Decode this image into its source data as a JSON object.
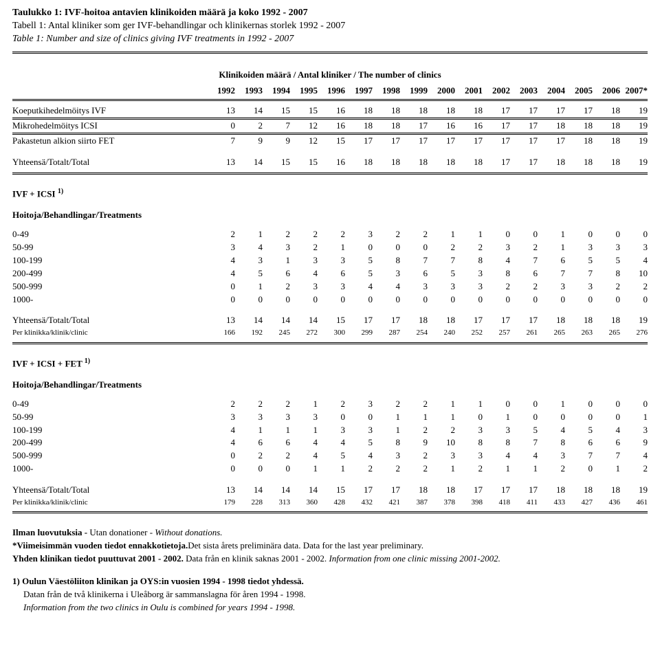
{
  "titles": {
    "fi_b": "Taulukko 1: IVF-hoitoa antavien klinikoiden määrä ja koko 1992 - 2007",
    "sv": "Tabell 1: Antal kliniker som ger IVF-behandlingar och klinikernas storlek 1992 - 2007",
    "en_i": "Table 1: Number and size of clinics giving IVF treatments in 1992 - 2007"
  },
  "section_header": {
    "fi_b": "Klinikoiden määrä",
    "sep1": " / Antal kliniker / ",
    "en_i": "The number of clinics"
  },
  "years": [
    "1992",
    "1993",
    "1994",
    "1995",
    "1996",
    "1997",
    "1998",
    "1999",
    "2000",
    "2001",
    "2002",
    "2003",
    "2004",
    "2005",
    "2006",
    "2007*"
  ],
  "block1": {
    "rows": [
      {
        "label": "Koeputkihedelmöitys IVF",
        "v": [
          "13",
          "14",
          "15",
          "15",
          "16",
          "18",
          "18",
          "18",
          "18",
          "18",
          "17",
          "17",
          "17",
          "17",
          "18",
          "19"
        ]
      },
      {
        "label": "Mikrohedelmöitys ICSI",
        "v": [
          "0",
          "2",
          "7",
          "12",
          "16",
          "18",
          "18",
          "17",
          "16",
          "16",
          "17",
          "17",
          "18",
          "18",
          "18",
          "19"
        ]
      },
      {
        "label": "Pakastetun alkion siirto FET",
        "v": [
          "7",
          "9",
          "9",
          "12",
          "15",
          "17",
          "17",
          "17",
          "17",
          "17",
          "17",
          "17",
          "17",
          "18",
          "18",
          "19"
        ]
      }
    ],
    "total": {
      "label": "Yhteensä/Totalt/Total",
      "v": [
        "13",
        "14",
        "15",
        "15",
        "16",
        "18",
        "18",
        "18",
        "18",
        "18",
        "17",
        "17",
        "18",
        "18",
        "18",
        "19"
      ]
    }
  },
  "ivf_icsi_hdr": {
    "a": "IVF + ICSI ",
    "sup": "1)"
  },
  "hbt": {
    "fi_b": "Hoitoja/",
    "sv": "Behandlingar/",
    "en_i": "Treatments"
  },
  "block2": {
    "rows": [
      {
        "label": "0-49",
        "v": [
          "2",
          "1",
          "2",
          "2",
          "2",
          "3",
          "2",
          "2",
          "1",
          "1",
          "0",
          "0",
          "1",
          "0",
          "0",
          "0"
        ]
      },
      {
        "label": "50-99",
        "v": [
          "3",
          "4",
          "3",
          "2",
          "1",
          "0",
          "0",
          "0",
          "2",
          "2",
          "3",
          "2",
          "1",
          "3",
          "3",
          "3"
        ]
      },
      {
        "label": "100-199",
        "v": [
          "4",
          "3",
          "1",
          "3",
          "3",
          "5",
          "8",
          "7",
          "7",
          "8",
          "4",
          "7",
          "6",
          "5",
          "5",
          "4"
        ]
      },
      {
        "label": "200-499",
        "v": [
          "4",
          "5",
          "6",
          "4",
          "6",
          "5",
          "3",
          "6",
          "5",
          "3",
          "8",
          "6",
          "7",
          "7",
          "8",
          "10"
        ]
      },
      {
        "label": "500-999",
        "v": [
          "0",
          "1",
          "2",
          "3",
          "3",
          "4",
          "4",
          "3",
          "3",
          "3",
          "2",
          "2",
          "3",
          "3",
          "2",
          "2"
        ]
      },
      {
        "label": "1000-",
        "v": [
          "0",
          "0",
          "0",
          "0",
          "0",
          "0",
          "0",
          "0",
          "0",
          "0",
          "0",
          "0",
          "0",
          "0",
          "0",
          "0"
        ]
      }
    ],
    "totals": [
      {
        "label": "Yhteensä/Totalt/Total",
        "v": [
          "13",
          "14",
          "14",
          "14",
          "15",
          "17",
          "17",
          "18",
          "18",
          "17",
          "17",
          "17",
          "18",
          "18",
          "18",
          "19"
        ],
        "small": false
      },
      {
        "label": "Per klinikka/klinik/clinic",
        "v": [
          "166",
          "192",
          "245",
          "272",
          "300",
          "299",
          "287",
          "254",
          "240",
          "252",
          "257",
          "261",
          "265",
          "263",
          "265",
          "276"
        ],
        "small": true
      }
    ]
  },
  "ivf_icsi_fet_hdr": {
    "a": "IVF + ICSI + FET ",
    "sup": "1)"
  },
  "block3": {
    "rows": [
      {
        "label": "0-49",
        "v": [
          "2",
          "2",
          "2",
          "1",
          "2",
          "3",
          "2",
          "2",
          "1",
          "1",
          "0",
          "0",
          "1",
          "0",
          "0",
          "0"
        ]
      },
      {
        "label": "50-99",
        "v": [
          "3",
          "3",
          "3",
          "3",
          "0",
          "0",
          "1",
          "1",
          "1",
          "0",
          "1",
          "0",
          "0",
          "0",
          "0",
          "1"
        ]
      },
      {
        "label": "100-199",
        "v": [
          "4",
          "1",
          "1",
          "1",
          "3",
          "3",
          "1",
          "2",
          "2",
          "3",
          "3",
          "5",
          "4",
          "5",
          "4",
          "3"
        ]
      },
      {
        "label": "200-499",
        "v": [
          "4",
          "6",
          "6",
          "4",
          "4",
          "5",
          "8",
          "9",
          "10",
          "8",
          "8",
          "7",
          "8",
          "6",
          "6",
          "9"
        ]
      },
      {
        "label": "500-999",
        "v": [
          "0",
          "2",
          "2",
          "4",
          "5",
          "4",
          "3",
          "2",
          "3",
          "3",
          "4",
          "4",
          "3",
          "7",
          "7",
          "4"
        ]
      },
      {
        "label": "1000-",
        "v": [
          "0",
          "0",
          "0",
          "1",
          "1",
          "2",
          "2",
          "2",
          "1",
          "2",
          "1",
          "1",
          "2",
          "0",
          "1",
          "2"
        ]
      }
    ],
    "totals": [
      {
        "label": "Yhteensä/Totalt/Total",
        "v": [
          "13",
          "14",
          "14",
          "14",
          "15",
          "17",
          "17",
          "18",
          "18",
          "17",
          "17",
          "17",
          "18",
          "18",
          "18",
          "19"
        ],
        "small": false
      },
      {
        "label": "Per klinikka/klinik/clinic",
        "v": [
          "179",
          "228",
          "313",
          "360",
          "428",
          "432",
          "421",
          "387",
          "378",
          "398",
          "418",
          "411",
          "433",
          "427",
          "436",
          "461"
        ],
        "small": true
      }
    ]
  },
  "notes": {
    "l1a": "Ilman luovutuksia -",
    "l1b": " Utan donationer - ",
    "l1c": "Without donations.",
    "l2a": "*Viimeisimmän vuoden tiedot ennakkotietoja.",
    "l2b": "Det sista årets preliminära data. ",
    "l2c": "Data for the last year preliminary.",
    "l3a": "Yhden klinikan tiedot puuttuvat 2001 - 2002.",
    "l3b": " Data från en klinik saknas 2001 - 2002. ",
    "l3c": "Information from one clinic missing 2001-2002.",
    "l4": "1) Oulun Väestöliiton klinikan ja OYS:in vuosien 1994 - 1998 tiedot yhdessä.",
    "l5": "Datan från de två klinikerna i Uleåborg är sammanslagna för åren 1994 - 1998.",
    "l6": "Information from the two clinics in Oulu is combined  for years 1994 - 1998."
  }
}
